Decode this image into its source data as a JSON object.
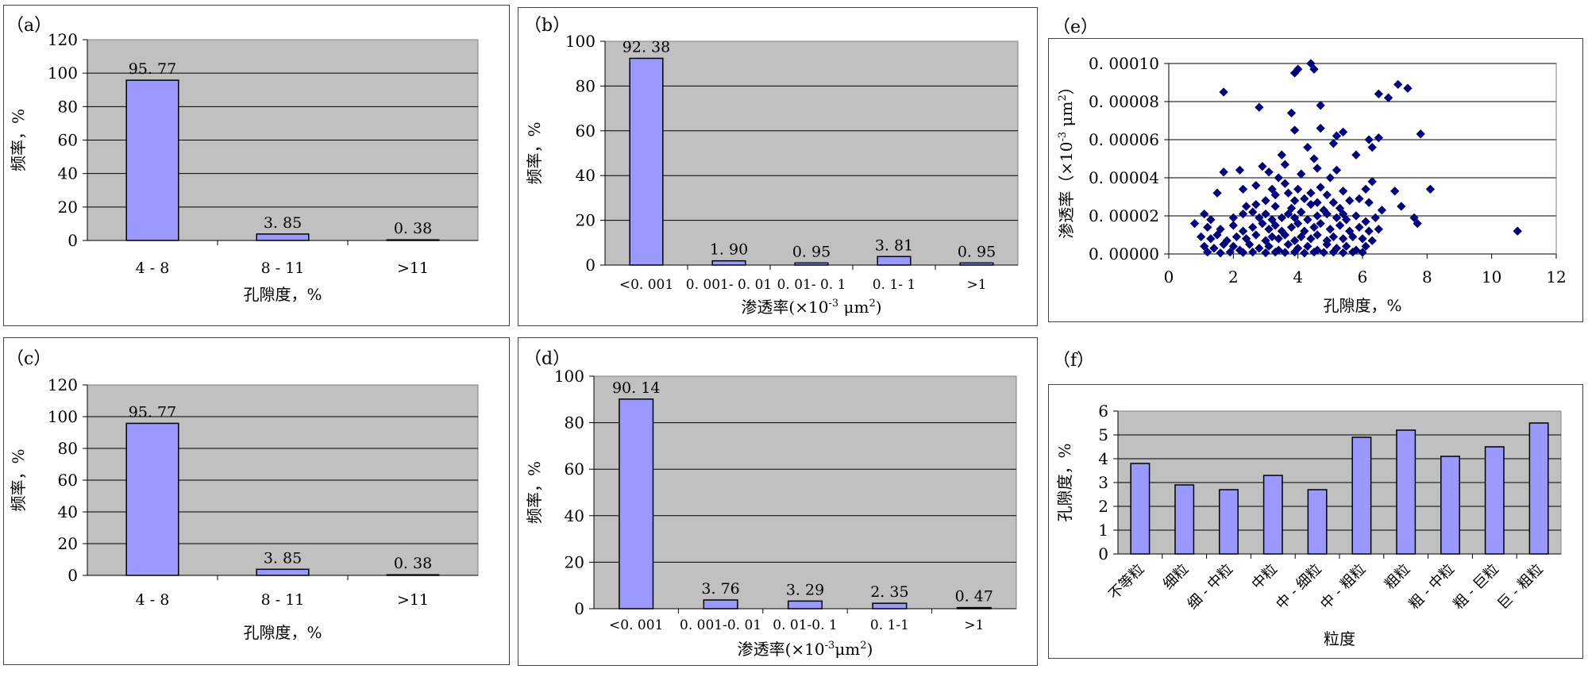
{
  "chart_data": [
    {
      "id": "a",
      "panel_label": "（a）",
      "type": "bar",
      "categories": [
        "4 - 8",
        "8 - 11",
        ">11"
      ],
      "values": [
        95.77,
        3.85,
        0.38
      ],
      "value_labels": [
        "95. 77",
        "3. 85",
        "0. 38"
      ],
      "ylabel": "频率，%",
      "xlabel": "孔隙度，%",
      "ylim": [
        0,
        120
      ],
      "yticks": [
        "0",
        "20",
        "40",
        "60",
        "80",
        "100",
        "120"
      ],
      "grid": true,
      "plot_bg": "#c0c0c0",
      "bar_color": "#9999ff"
    },
    {
      "id": "b",
      "panel_label": "（b）",
      "type": "bar",
      "categories": [
        "<0. 001",
        "0. 001- 0. 01",
        "0. 01- 0. 1",
        "0. 1- 1",
        ">1"
      ],
      "values": [
        92.38,
        1.9,
        0.95,
        3.81,
        0.95
      ],
      "value_labels": [
        "92. 38",
        "1. 90",
        "0. 95",
        "3. 81",
        "0. 95"
      ],
      "ylabel": "频率，%",
      "xlabel_main": "渗透率(×10",
      "xlabel_sup": "-3",
      "xlabel_unit": " μm",
      "xlabel_sup2": "2",
      "xlabel_end": ")",
      "ylim": [
        0,
        100
      ],
      "yticks": [
        "0",
        "20",
        "40",
        "60",
        "80",
        "100"
      ],
      "grid": true,
      "plot_bg": "#c0c0c0",
      "bar_color": "#9999ff"
    },
    {
      "id": "c",
      "panel_label": "（c）",
      "type": "bar",
      "categories": [
        "4 - 8",
        "8 - 11",
        ">11"
      ],
      "values": [
        95.77,
        3.85,
        0.38
      ],
      "value_labels": [
        "95. 77",
        "3. 85",
        "0. 38"
      ],
      "ylabel": "频率，%",
      "xlabel": "孔隙度，%",
      "ylim": [
        0,
        120
      ],
      "yticks": [
        "0",
        "20",
        "40",
        "60",
        "80",
        "100",
        "120"
      ],
      "grid": true,
      "plot_bg": "#c0c0c0",
      "bar_color": "#9999ff"
    },
    {
      "id": "d",
      "panel_label": "（d）",
      "type": "bar",
      "categories": [
        "<0. 001",
        "0. 001-0. 01",
        "0. 01-0. 1",
        "0. 1-1",
        ">1"
      ],
      "values": [
        90.14,
        3.76,
        3.29,
        2.35,
        0.47
      ],
      "value_labels": [
        "90. 14",
        "3. 76",
        "3. 29",
        "2. 35",
        "0. 47"
      ],
      "ylabel": "频率，%",
      "xlabel_main": "渗透率(×10",
      "xlabel_sup": "-3",
      "xlabel_unit": "μm",
      "xlabel_sup2": "2",
      "xlabel_end": ")",
      "ylim": [
        0,
        100
      ],
      "yticks": [
        "0",
        "20",
        "40",
        "60",
        "80",
        "100"
      ],
      "grid": true,
      "plot_bg": "#c0c0c0",
      "bar_color": "#9999ff"
    },
    {
      "id": "e",
      "panel_label": "（e）",
      "type": "scatter",
      "xlabel": "孔隙度，%",
      "ylabel_main": "渗透率（×10",
      "ylabel_sup": "-3",
      "ylabel_unit": " μm",
      "ylabel_sup2": "2",
      "ylabel_end": "）",
      "xlim": [
        0,
        12
      ],
      "ylim": [
        0,
        0.0001
      ],
      "xticks": [
        "0",
        "2",
        "4",
        "6",
        "8",
        "10",
        "12"
      ],
      "yticks": [
        "0. 00000",
        "0. 00002",
        "0. 00004",
        "0. 00006",
        "0. 00008",
        "0. 00010"
      ],
      "grid": true,
      "plot_bg": "#ffffff",
      "point_color": "#000080",
      "points": [
        [
          4.0,
          9.7e-05
        ],
        [
          4.4,
          0.0001
        ],
        [
          4.5,
          9.7e-05
        ],
        [
          3.9,
          9.5e-05
        ],
        [
          1.7,
          8.5e-05
        ],
        [
          2.8,
          7.7e-05
        ],
        [
          7.1,
          8.9e-05
        ],
        [
          7.4,
          8.7e-05
        ],
        [
          6.5,
          8.4e-05
        ],
        [
          6.8,
          8.2e-05
        ],
        [
          4.7,
          7.8e-05
        ],
        [
          3.8,
          7.4e-05
        ],
        [
          7.8,
          6.3e-05
        ],
        [
          4.7,
          6.6e-05
        ],
        [
          5.2,
          6.2e-05
        ],
        [
          5.4,
          6.4e-05
        ],
        [
          3.9,
          6.5e-05
        ],
        [
          6.5,
          6.1e-05
        ],
        [
          5.1,
          5.8e-05
        ],
        [
          4.3,
          5.6e-05
        ],
        [
          6.2,
          6e-05
        ],
        [
          6.3,
          5.6e-05
        ],
        [
          5.8,
          5.2e-05
        ],
        [
          4.5,
          5e-05
        ],
        [
          3.5,
          5.2e-05
        ],
        [
          3.6,
          4.7e-05
        ],
        [
          2.9,
          4.6e-05
        ],
        [
          2.2,
          4.4e-05
        ],
        [
          1.7,
          4.3e-05
        ],
        [
          4.6,
          4.5e-05
        ],
        [
          4.1,
          4.2e-05
        ],
        [
          5.2,
          4.4e-05
        ],
        [
          3.1,
          4.3e-05
        ],
        [
          6.3,
          3.8e-05
        ],
        [
          3.4,
          4e-05
        ],
        [
          5.0,
          4e-05
        ],
        [
          1.5,
          3.2e-05
        ],
        [
          2.3,
          3.4e-05
        ],
        [
          2.7,
          3.6e-05
        ],
        [
          3.2,
          3.4e-05
        ],
        [
          3.3,
          3.1e-05
        ],
        [
          3.6,
          3.7e-05
        ],
        [
          3.7,
          3.2e-05
        ],
        [
          4.0,
          3.4e-05
        ],
        [
          4.4,
          3.2e-05
        ],
        [
          4.7,
          3.5e-05
        ],
        [
          4.9,
          3.1e-05
        ],
        [
          5.4,
          3.3e-05
        ],
        [
          7.0,
          3.3e-05
        ],
        [
          8.1,
          3.4e-05
        ],
        [
          6.1,
          3.4e-05
        ],
        [
          5.9,
          2.9e-05
        ],
        [
          3.0,
          2.8e-05
        ],
        [
          3.9,
          2.8e-05
        ],
        [
          4.2,
          2.9e-05
        ],
        [
          4.4,
          2.6e-05
        ],
        [
          4.6,
          2.7e-05
        ],
        [
          5.1,
          2.7e-05
        ],
        [
          5.6,
          2.8e-05
        ],
        [
          6.2,
          2.7e-05
        ],
        [
          7.2,
          2.5e-05
        ],
        [
          6.6,
          2.3e-05
        ],
        [
          2.4,
          2.5e-05
        ],
        [
          2.7,
          2.6e-05
        ],
        [
          3.3,
          2.5e-05
        ],
        [
          3.8,
          2.4e-05
        ],
        [
          4.8,
          2.3e-05
        ],
        [
          5.3,
          2.4e-05
        ],
        [
          1.1,
          2.1e-05
        ],
        [
          1.3,
          1.8e-05
        ],
        [
          2.0,
          1.9e-05
        ],
        [
          2.3,
          2.1e-05
        ],
        [
          2.6,
          2.2e-05
        ],
        [
          2.8,
          1.9e-05
        ],
        [
          3.0,
          2.1e-05
        ],
        [
          3.2,
          1.8e-05
        ],
        [
          3.5,
          1.9e-05
        ],
        [
          3.7,
          2.1e-05
        ],
        [
          3.9,
          1.9e-05
        ],
        [
          4.1,
          2.2e-05
        ],
        [
          4.3,
          1.8e-05
        ],
        [
          4.6,
          2e-05
        ],
        [
          4.9,
          2.1e-05
        ],
        [
          5.2,
          1.9e-05
        ],
        [
          5.4,
          2.1e-05
        ],
        [
          5.5,
          1.8e-05
        ],
        [
          5.8,
          2e-05
        ],
        [
          6.1,
          1.7e-05
        ],
        [
          6.4,
          1.9e-05
        ],
        [
          7.6,
          1.9e-05
        ],
        [
          7.7,
          1.6e-05
        ],
        [
          10.8,
          1.2e-05
        ],
        [
          0.8,
          1.6e-05
        ],
        [
          1.2,
          1.4e-05
        ],
        [
          1.6,
          1.3e-05
        ],
        [
          2.0,
          1.5e-05
        ],
        [
          2.3,
          1.2e-05
        ],
        [
          2.6,
          1.4e-05
        ],
        [
          2.9,
          1.6e-05
        ],
        [
          3.1,
          1.3e-05
        ],
        [
          3.3,
          1.5e-05
        ],
        [
          3.5,
          1.2e-05
        ],
        [
          3.8,
          1.4e-05
        ],
        [
          4.0,
          1.6e-05
        ],
        [
          4.2,
          1.2e-05
        ],
        [
          4.5,
          1.4e-05
        ],
        [
          4.7,
          1.6e-05
        ],
        [
          5.0,
          1.3e-05
        ],
        [
          5.3,
          1.5e-05
        ],
        [
          5.6,
          1.2e-05
        ],
        [
          5.9,
          1.4e-05
        ],
        [
          6.2,
          1.2e-05
        ],
        [
          6.5,
          1.3e-05
        ],
        [
          1.0,
          9e-06
        ],
        [
          1.3,
          8e-06
        ],
        [
          1.5,
          1e-05
        ],
        [
          1.8,
          7e-06
        ],
        [
          2.1,
          9e-06
        ],
        [
          2.4,
          8e-06
        ],
        [
          2.7,
          1e-05
        ],
        [
          3.0,
          7e-06
        ],
        [
          3.2,
          9e-06
        ],
        [
          3.4,
          8e-06
        ],
        [
          3.6,
          1e-05
        ],
        [
          3.9,
          7e-06
        ],
        [
          4.1,
          9e-06
        ],
        [
          4.4,
          8e-06
        ],
        [
          4.6,
          1e-05
        ],
        [
          4.9,
          7e-06
        ],
        [
          5.1,
          9e-06
        ],
        [
          5.4,
          8e-06
        ],
        [
          5.7,
          9e-06
        ],
        [
          6.0,
          8e-06
        ],
        [
          6.3,
          7e-06
        ],
        [
          1.1,
          4e-06
        ],
        [
          1.4,
          3e-06
        ],
        [
          1.7,
          5e-06
        ],
        [
          2.0,
          4e-06
        ],
        [
          2.2,
          2e-06
        ],
        [
          2.5,
          5e-06
        ],
        [
          2.8,
          3e-06
        ],
        [
          3.1,
          4e-06
        ],
        [
          3.4,
          2e-06
        ],
        [
          3.7,
          5e-06
        ],
        [
          4.0,
          3e-06
        ],
        [
          4.3,
          4e-06
        ],
        [
          4.6,
          2e-06
        ],
        [
          4.9,
          5e-06
        ],
        [
          5.2,
          3e-06
        ],
        [
          5.5,
          4e-06
        ],
        [
          5.8,
          2e-06
        ],
        [
          6.1,
          4e-06
        ],
        [
          1.2,
          1e-06
        ],
        [
          1.6,
          5e-07
        ],
        [
          1.9,
          1e-06
        ],
        [
          2.3,
          8e-07
        ],
        [
          2.6,
          1e-06
        ],
        [
          3.0,
          6e-07
        ],
        [
          3.3,
          1e-06
        ],
        [
          3.6,
          8e-07
        ],
        [
          3.9,
          1e-06
        ],
        [
          4.2,
          5e-07
        ],
        [
          4.5,
          1e-06
        ],
        [
          4.8,
          8e-07
        ],
        [
          5.1,
          1e-06
        ],
        [
          5.4,
          6e-07
        ],
        [
          5.7,
          1e-06
        ],
        [
          6.0,
          8e-07
        ]
      ]
    },
    {
      "id": "f",
      "panel_label": "（f）",
      "type": "bar",
      "categories": [
        "不等粒",
        "细粒",
        "细 - 中粒",
        "中粒",
        "中 - 细粒",
        "中 - 粗粒",
        "粗粒",
        "粗 - 中粒",
        "粗 - 巨粒",
        "巨 - 粗粒"
      ],
      "values": [
        3.8,
        2.9,
        2.7,
        3.3,
        2.7,
        4.9,
        5.2,
        4.1,
        4.5,
        5.5
      ],
      "ylabel": "孔隙度，%",
      "xlabel": "粒度",
      "ylim": [
        0,
        6
      ],
      "yticks": [
        "0",
        "1",
        "2",
        "3",
        "4",
        "5",
        "6"
      ],
      "grid": true,
      "plot_bg": "#c0c0c0",
      "bar_color": "#9999ff"
    }
  ]
}
